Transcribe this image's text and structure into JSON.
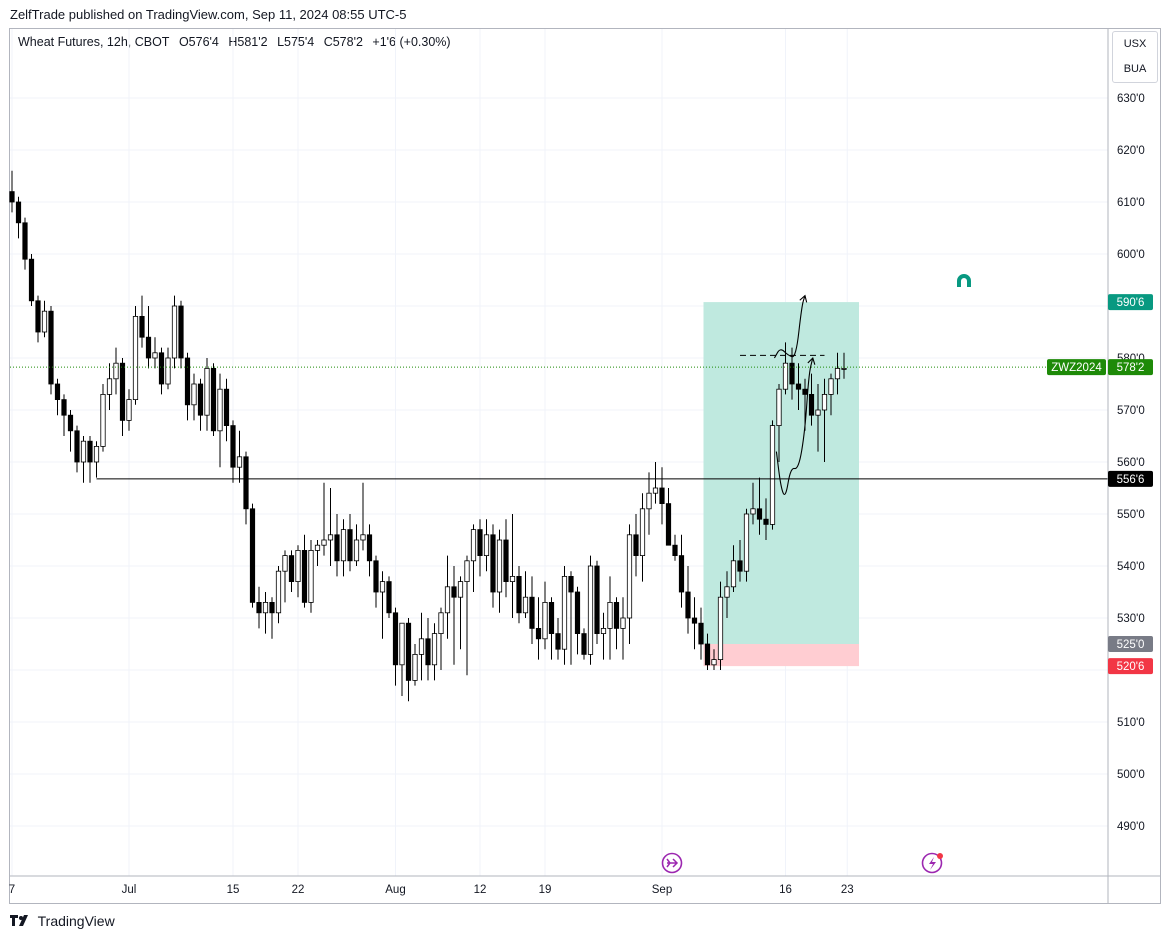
{
  "header": {
    "published": "ZelfTrade published on TradingView.com, Sep 11, 2024 08:55 UTC-5"
  },
  "legend": {
    "symbol": "Wheat Futures, 12h, CBOT",
    "open": "O576'4",
    "high": "H581'2",
    "low": "L575'4",
    "close": "C578'2",
    "change": "+1'6 (+0.30%)"
  },
  "badges": {
    "currency": "USX",
    "unit": "BUA"
  },
  "footer": {
    "brand": "TradingView"
  },
  "colors": {
    "up_body": "#ffffff",
    "down_body": "#000000",
    "target_zone": "#bfe9df",
    "stop_zone": "#ffcdd2",
    "target_tag": "#089981",
    "stop_tag": "#f23645",
    "entry_tag": "#787b86",
    "current_tag": "#1e8a08",
    "level_tag": "#000000"
  },
  "chart_data": {
    "type": "candlestick",
    "y_axis": {
      "min": 480,
      "max": 635,
      "ticks": [
        490,
        500,
        510,
        520,
        530,
        540,
        550,
        560,
        570,
        580,
        590,
        600,
        610,
        620,
        630
      ],
      "tick_labels": [
        "490'0",
        "500'0",
        "510'0",
        "520'0",
        "530'0",
        "540'0",
        "550'0",
        "560'0",
        "570'0",
        "580'0",
        "590'0",
        "600'0",
        "610'0",
        "620'0",
        "630'0"
      ]
    },
    "x_axis": {
      "ticks": [
        {
          "label": "7",
          "bar": 0
        },
        {
          "label": "Jul",
          "bar": 18
        },
        {
          "label": "15",
          "bar": 34
        },
        {
          "label": "22",
          "bar": 44
        },
        {
          "label": "Aug",
          "bar": 59
        },
        {
          "label": "12",
          "bar": 72
        },
        {
          "label": "19",
          "bar": 82
        },
        {
          "label": "Sep",
          "bar": 100
        },
        {
          "label": "16",
          "bar": 119
        },
        {
          "label": "23",
          "bar": 128.5
        }
      ]
    },
    "candles": [
      [
        612,
        616,
        608,
        610
      ],
      [
        610,
        611,
        603,
        606
      ],
      [
        606,
        607,
        597,
        599
      ],
      [
        599,
        600,
        590,
        591
      ],
      [
        591,
        592,
        583,
        585
      ],
      [
        585,
        591,
        584,
        589
      ],
      [
        589,
        590,
        573,
        575
      ],
      [
        575,
        576,
        569,
        572
      ],
      [
        572,
        573,
        565,
        569
      ],
      [
        569,
        570,
        562,
        566
      ],
      [
        566,
        567,
        558,
        560
      ],
      [
        560,
        565,
        556,
        564
      ],
      [
        564,
        565,
        556,
        560
      ],
      [
        560,
        564,
        557,
        563
      ],
      [
        563,
        575,
        562,
        573
      ],
      [
        573,
        579,
        570,
        576
      ],
      [
        576,
        582,
        573,
        579
      ],
      [
        579,
        580,
        565,
        568
      ],
      [
        568,
        574,
        566,
        572
      ],
      [
        572,
        590,
        571,
        588
      ],
      [
        588,
        592,
        582,
        584
      ],
      [
        584,
        590,
        578,
        580
      ],
      [
        580,
        584,
        578,
        581
      ],
      [
        581,
        582,
        573,
        575
      ],
      [
        575,
        582,
        574,
        580
      ],
      [
        580,
        592,
        578,
        590
      ],
      [
        590,
        591,
        578,
        580
      ],
      [
        580,
        581,
        568,
        571
      ],
      [
        571,
        577,
        568,
        575
      ],
      [
        575,
        576,
        566,
        569
      ],
      [
        569,
        580,
        566,
        578
      ],
      [
        578,
        579,
        565,
        566
      ],
      [
        566,
        577,
        559,
        574
      ],
      [
        574,
        576,
        564,
        567
      ],
      [
        567,
        568,
        556,
        559
      ],
      [
        559,
        566,
        556,
        561
      ],
      [
        561,
        562,
        548,
        551
      ],
      [
        551,
        552,
        532,
        533
      ],
      [
        533,
        536,
        528,
        531
      ],
      [
        531,
        535,
        527,
        533
      ],
      [
        533,
        534,
        526,
        531
      ],
      [
        531,
        540,
        529,
        539
      ],
      [
        539,
        543,
        533,
        542
      ],
      [
        542,
        543,
        535,
        537
      ],
      [
        537,
        544,
        534,
        543
      ],
      [
        543,
        546,
        532,
        533
      ],
      [
        533,
        545,
        531,
        543
      ],
      [
        543,
        545,
        540,
        544
      ],
      [
        544,
        556,
        542,
        545
      ],
      [
        545,
        555,
        540,
        546
      ],
      [
        546,
        550,
        538,
        541
      ],
      [
        541,
        549,
        538,
        547
      ],
      [
        547,
        550,
        539,
        541
      ],
      [
        541,
        548,
        540,
        545
      ],
      [
        545,
        556,
        543,
        546
      ],
      [
        546,
        548,
        538,
        541
      ],
      [
        541,
        542,
        532,
        535
      ],
      [
        535,
        539,
        526,
        537
      ],
      [
        537,
        538,
        530,
        531
      ],
      [
        531,
        532,
        517,
        521
      ],
      [
        521,
        528,
        515,
        529
      ],
      [
        529,
        530,
        514,
        518
      ],
      [
        518,
        525,
        517,
        523
      ],
      [
        523,
        531,
        518,
        526
      ],
      [
        526,
        530,
        518,
        521
      ],
      [
        521,
        529,
        518,
        527
      ],
      [
        527,
        532,
        520,
        531
      ],
      [
        531,
        542,
        526,
        536
      ],
      [
        536,
        540,
        521,
        534
      ],
      [
        534,
        538,
        524,
        537
      ],
      [
        537,
        542,
        519,
        541
      ],
      [
        541,
        548,
        535,
        547
      ],
      [
        547,
        549,
        538,
        542
      ],
      [
        542,
        549,
        539,
        546
      ],
      [
        546,
        548,
        532,
        535
      ],
      [
        535,
        547,
        531,
        545
      ],
      [
        545,
        549,
        534,
        537
      ],
      [
        537,
        550,
        530,
        538
      ],
      [
        538,
        540,
        529,
        531
      ],
      [
        531,
        539,
        530,
        534
      ],
      [
        534,
        538,
        525,
        528
      ],
      [
        528,
        534,
        522,
        526
      ],
      [
        526,
        537,
        524,
        533
      ],
      [
        533,
        534,
        522,
        527
      ],
      [
        527,
        530,
        522,
        524
      ],
      [
        524,
        540,
        521,
        538
      ],
      [
        538,
        539,
        521,
        535
      ],
      [
        535,
        536,
        523,
        527
      ],
      [
        527,
        528,
        522,
        523
      ],
      [
        523,
        542,
        521,
        540
      ],
      [
        540,
        541,
        525,
        527
      ],
      [
        527,
        531,
        522,
        528
      ],
      [
        528,
        538,
        522,
        533
      ],
      [
        533,
        534,
        524,
        528
      ],
      [
        528,
        534,
        522,
        530
      ],
      [
        530,
        548,
        525,
        546
      ],
      [
        546,
        550,
        538,
        542
      ],
      [
        542,
        554,
        537,
        551
      ],
      [
        551,
        558,
        546,
        554
      ],
      [
        554,
        560,
        552,
        555
      ],
      [
        555,
        559,
        548,
        552
      ],
      [
        552,
        555,
        545,
        544
      ],
      [
        544,
        546,
        541,
        542
      ],
      [
        542,
        546,
        532,
        535
      ],
      [
        535,
        540,
        527,
        530
      ],
      [
        530,
        534,
        524,
        529
      ],
      [
        529,
        532,
        522,
        525
      ],
      [
        525,
        527,
        520,
        521
      ],
      [
        521,
        524,
        520,
        522
      ],
      [
        522,
        537,
        520,
        534
      ],
      [
        534,
        539,
        530,
        536
      ],
      [
        536,
        544,
        535,
        541
      ],
      [
        541,
        545,
        537,
        539
      ],
      [
        539,
        551,
        537,
        550
      ],
      [
        550,
        556,
        548,
        551
      ],
      [
        551,
        557,
        546,
        549
      ],
      [
        549,
        553,
        545,
        548
      ],
      [
        548,
        568,
        547,
        567
      ],
      [
        567,
        575,
        560,
        574
      ],
      [
        574,
        583,
        573,
        579
      ],
      [
        579,
        582,
        572,
        575
      ],
      [
        575,
        579,
        570,
        574
      ],
      [
        574,
        576,
        566,
        573
      ],
      [
        573,
        577,
        567,
        569
      ],
      [
        569,
        575,
        562,
        570
      ],
      [
        570,
        576,
        560,
        573
      ],
      [
        573,
        577,
        569,
        576
      ],
      [
        576,
        581,
        573,
        578
      ],
      [
        578,
        581,
        576,
        578
      ]
    ],
    "levels": {
      "support": {
        "value": 556.75,
        "label": "556'6"
      },
      "current": {
        "value": 578.25,
        "label": "578'2",
        "symbol": "ZWZ2024"
      },
      "target": {
        "value": 590.75,
        "label": "590'6"
      },
      "entry": {
        "value": 525.0,
        "label": "525'0"
      },
      "stop": {
        "value": 520.75,
        "label": "520'6"
      },
      "high_dashed": {
        "value": 580.5
      }
    },
    "position": {
      "start_bar": 107,
      "end_bar": 122,
      "entry": 525.0,
      "target": 590.75,
      "stop": 520.75
    },
    "projection_paths": [
      [
        [
          117.3,
          580
        ],
        [
          118.2,
          582
        ],
        [
          119.4,
          580.5
        ],
        [
          120.6,
          580
        ],
        [
          121.5,
          590
        ],
        [
          122,
          592
        ]
      ],
      [
        [
          117.6,
          562
        ],
        [
          118.3,
          555
        ],
        [
          119.0,
          553
        ],
        [
          119.8,
          559
        ],
        [
          121.0,
          558.5
        ],
        [
          122.0,
          566
        ],
        [
          122.6,
          577
        ],
        [
          123.2,
          580
        ]
      ]
    ]
  }
}
